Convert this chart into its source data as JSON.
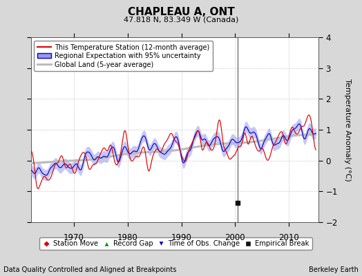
{
  "title": "CHAPLEAU A, ONT",
  "subtitle": "47.818 N, 83.349 W (Canada)",
  "ylabel": "Temperature Anomaly (°C)",
  "xlabel_left": "Data Quality Controlled and Aligned at Breakpoints",
  "xlabel_right": "Berkeley Earth",
  "ylim": [
    -2,
    4
  ],
  "xlim": [
    1962,
    2015.5
  ],
  "xticks": [
    1970,
    1980,
    1990,
    2000,
    2010
  ],
  "yticks": [
    -2,
    -1,
    0,
    1,
    2,
    3,
    4
  ],
  "background_color": "#d8d8d8",
  "plot_bg_color": "#ffffff",
  "station_color": "#dd0000",
  "regional_color": "#0000cc",
  "regional_fill_color": "#9999ee",
  "global_color": "#bbbbbb",
  "empirical_break_year": 2000.5,
  "empirical_break_value": -1.38,
  "vertical_line_year": 2000.5,
  "seed": 42,
  "n_years_start": 1962,
  "n_years_end": 2015
}
